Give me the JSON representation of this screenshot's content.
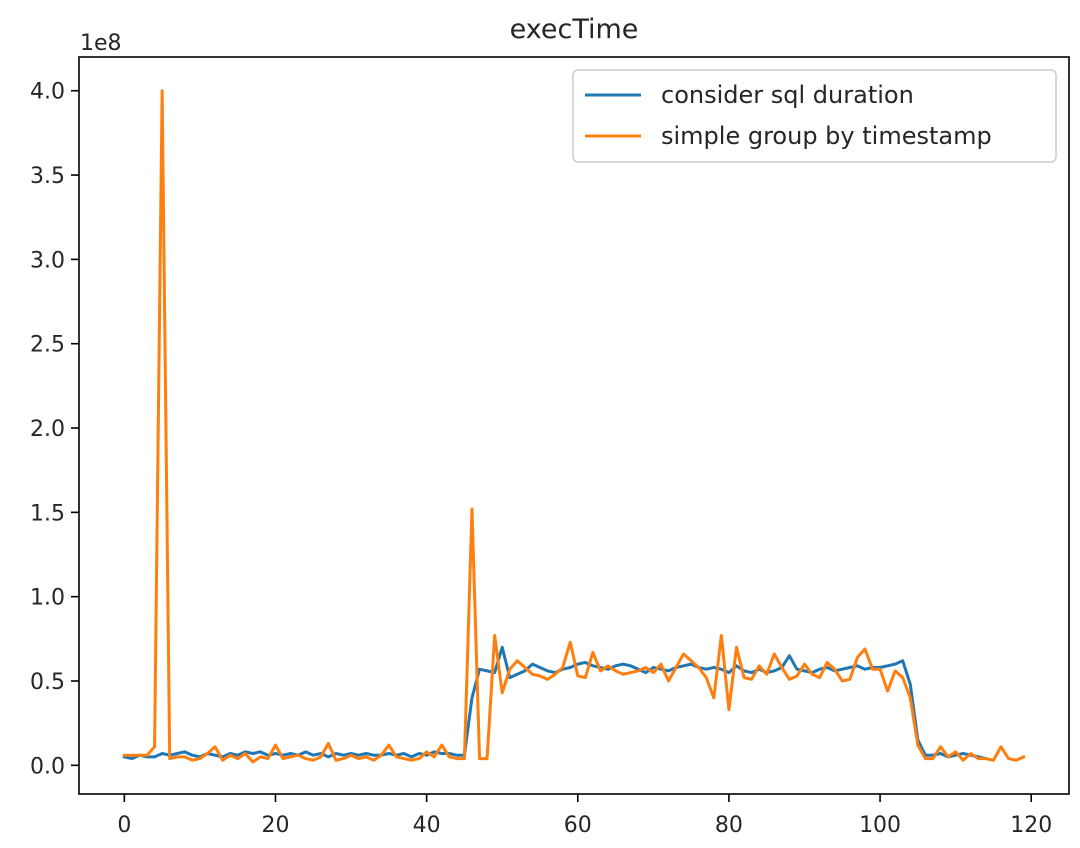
{
  "chart_data": {
    "type": "line",
    "title": "execTime",
    "xlabel": "",
    "ylabel": "",
    "offset_text": "1e8",
    "xlim": [
      -6,
      125
    ],
    "ylim": [
      -17000000,
      420000000
    ],
    "xticks": [
      0,
      20,
      40,
      60,
      80,
      100,
      120
    ],
    "xtick_labels": [
      "0",
      "20",
      "40",
      "60",
      "80",
      "100",
      "120"
    ],
    "yticks": [
      0,
      50000000,
      100000000,
      150000000,
      200000000,
      250000000,
      300000000,
      350000000,
      400000000
    ],
    "ytick_labels": [
      "0.0",
      "0.5",
      "1.0",
      "1.5",
      "2.0",
      "2.5",
      "3.0",
      "3.5",
      "4.0"
    ],
    "grid": false,
    "legend_position": "upper right",
    "series": [
      {
        "name": "consider sql duration",
        "color": "#1f77b4",
        "x": [
          0,
          1,
          2,
          3,
          4,
          5,
          6,
          7,
          8,
          9,
          10,
          11,
          12,
          13,
          14,
          15,
          16,
          17,
          18,
          19,
          20,
          21,
          22,
          23,
          24,
          25,
          26,
          27,
          28,
          29,
          30,
          31,
          32,
          33,
          34,
          35,
          36,
          37,
          38,
          39,
          40,
          41,
          42,
          43,
          44,
          45,
          46,
          47,
          48,
          49,
          50,
          51,
          52,
          53,
          54,
          55,
          56,
          57,
          58,
          59,
          60,
          61,
          62,
          63,
          64,
          65,
          66,
          67,
          68,
          69,
          70,
          71,
          72,
          73,
          74,
          75,
          76,
          77,
          78,
          79,
          80,
          81,
          82,
          83,
          84,
          85,
          86,
          87,
          88,
          89,
          90,
          91,
          92,
          93,
          94,
          95,
          96,
          97,
          98,
          99,
          100,
          101,
          102,
          103,
          104,
          105,
          106,
          107,
          108,
          109,
          110,
          111,
          112,
          113,
          114
        ],
        "y": [
          5000000,
          4000000,
          6000000,
          5000000,
          5000000,
          7000000,
          6000000,
          7000000,
          8000000,
          6000000,
          5000000,
          7000000,
          6000000,
          5000000,
          7000000,
          6000000,
          8000000,
          7000000,
          8000000,
          6000000,
          7000000,
          6000000,
          7000000,
          6000000,
          8000000,
          6000000,
          7000000,
          5000000,
          7000000,
          6000000,
          7000000,
          6000000,
          7000000,
          6000000,
          6000000,
          7000000,
          6000000,
          7000000,
          5000000,
          7000000,
          6000000,
          8000000,
          7000000,
          7000000,
          6000000,
          6000000,
          40000000,
          57000000,
          56000000,
          55000000,
          70000000,
          52000000,
          54000000,
          56000000,
          60000000,
          58000000,
          56000000,
          55000000,
          57000000,
          58000000,
          60000000,
          61000000,
          59000000,
          58000000,
          57000000,
          59000000,
          60000000,
          59000000,
          57000000,
          55000000,
          58000000,
          57000000,
          56000000,
          58000000,
          59000000,
          60000000,
          58000000,
          57000000,
          58000000,
          57000000,
          55000000,
          59000000,
          56000000,
          55000000,
          57000000,
          55000000,
          56000000,
          58000000,
          65000000,
          57000000,
          56000000,
          55000000,
          57000000,
          58000000,
          56000000,
          57000000,
          58000000,
          59000000,
          57000000,
          58000000,
          58000000,
          59000000,
          60000000,
          62000000,
          48000000,
          15000000,
          6000000,
          6000000,
          7000000,
          5000000,
          6000000,
          7000000,
          6000000,
          5000000,
          4000000
        ]
      },
      {
        "name": "simple group by timestamp",
        "color": "#ff7f0e",
        "x": [
          0,
          1,
          2,
          3,
          4,
          5,
          6,
          7,
          8,
          9,
          10,
          11,
          12,
          13,
          14,
          15,
          16,
          17,
          18,
          19,
          20,
          21,
          22,
          23,
          24,
          25,
          26,
          27,
          28,
          29,
          30,
          31,
          32,
          33,
          34,
          35,
          36,
          37,
          38,
          39,
          40,
          41,
          42,
          43,
          44,
          45,
          46,
          47,
          48,
          49,
          50,
          51,
          52,
          53,
          54,
          55,
          56,
          57,
          58,
          59,
          60,
          61,
          62,
          63,
          64,
          65,
          66,
          67,
          68,
          69,
          70,
          71,
          72,
          73,
          74,
          75,
          76,
          77,
          78,
          79,
          80,
          81,
          82,
          83,
          84,
          85,
          86,
          87,
          88,
          89,
          90,
          91,
          92,
          93,
          94,
          95,
          96,
          97,
          98,
          99,
          100,
          101,
          102,
          103,
          104,
          105,
          106,
          107,
          108,
          109,
          110,
          111,
          112,
          113,
          114,
          115,
          116,
          117,
          118,
          119
        ],
        "y": [
          6000000,
          6000000,
          6000000,
          6000000,
          11000000,
          400000000,
          4000000,
          5000000,
          5000000,
          3000000,
          4000000,
          7000000,
          11000000,
          3000000,
          6000000,
          4000000,
          7000000,
          2000000,
          5000000,
          4000000,
          12000000,
          4000000,
          5000000,
          6000000,
          4000000,
          3000000,
          5000000,
          13000000,
          3000000,
          4000000,
          6000000,
          4000000,
          5000000,
          3000000,
          6000000,
          12000000,
          5000000,
          4000000,
          3000000,
          4000000,
          8000000,
          5000000,
          12000000,
          5000000,
          4000000,
          4000000,
          152000000,
          4000000,
          4000000,
          77000000,
          43000000,
          57000000,
          62000000,
          58000000,
          54000000,
          53000000,
          51000000,
          54000000,
          58000000,
          73000000,
          53000000,
          52000000,
          67000000,
          56000000,
          59000000,
          56000000,
          54000000,
          55000000,
          56000000,
          58000000,
          55000000,
          60000000,
          50000000,
          58000000,
          66000000,
          62000000,
          58000000,
          52000000,
          40000000,
          77000000,
          33000000,
          70000000,
          52000000,
          51000000,
          59000000,
          54000000,
          66000000,
          58000000,
          51000000,
          53000000,
          60000000,
          54000000,
          52000000,
          61000000,
          57000000,
          50000000,
          51000000,
          64000000,
          69000000,
          57000000,
          57000000,
          44000000,
          56000000,
          52000000,
          40000000,
          12000000,
          4000000,
          4000000,
          11000000,
          5000000,
          8000000,
          3000000,
          7000000,
          4000000,
          4000000,
          3000000,
          11000000,
          4000000,
          3000000,
          5000000
        ]
      }
    ]
  }
}
